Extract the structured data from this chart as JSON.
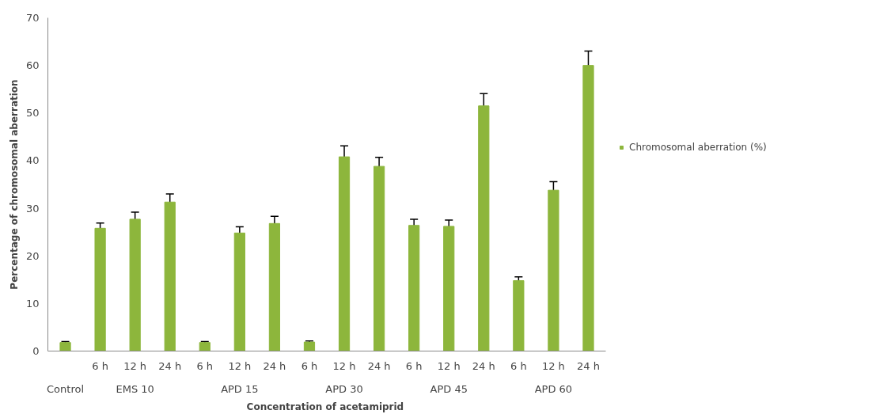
{
  "chart_data": {
    "type": "bar",
    "xlabel": "Concentration  of acetamiprid",
    "ylabel": "Percentage of chromosomal aberration",
    "categories": [
      null,
      "6 h",
      "12 h",
      "24 h",
      "6 h",
      "12 h",
      "24 h",
      "6 h",
      "12 h",
      "24 h",
      "6 h",
      "12 h",
      "24 h",
      "6 h",
      "12 h",
      "24 h"
    ],
    "annotations": [
      "Control",
      "EMS 10",
      "APD 15",
      "APD 30",
      "APD 45",
      "APD 60"
    ],
    "series": [
      {
        "name": "Chromosomal aberration (%)",
        "color": "#8db63c",
        "values": [
          1.8,
          25.8,
          27.7,
          31.3,
          1.8,
          24.8,
          26.8,
          1.9,
          40.8,
          38.8,
          26.4,
          26.2,
          51.5,
          14.8,
          33.8,
          60.0
        ],
        "errors": [
          0.2,
          1.1,
          1.5,
          1.7,
          0.2,
          1.3,
          1.5,
          0.2,
          2.3,
          1.9,
          1.3,
          1.3,
          2.6,
          0.8,
          1.8,
          3.0
        ]
      }
    ],
    "ylim": [
      0,
      70
    ],
    "yticks": [
      0,
      10,
      20,
      30,
      40,
      50,
      60,
      70
    ],
    "grid": false,
    "legend": "right"
  }
}
